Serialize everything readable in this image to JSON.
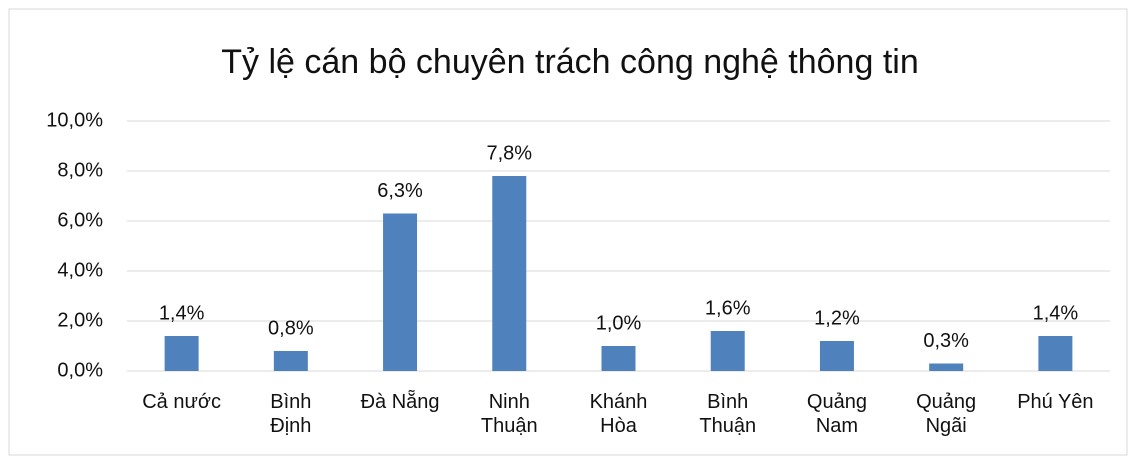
{
  "chart_data": {
    "type": "bar",
    "title": "Tỷ lệ cán bộ chuyên trách công nghệ thông tin",
    "categories": [
      "Cả nước",
      "Bình\nĐịnh",
      "Đà Nẵng",
      "Ninh\nThuận",
      "Khánh\nHòa",
      "Bình\nThuận",
      "Quảng\nNam",
      "Quảng\nNgãi",
      "Phú Yên"
    ],
    "values": [
      1.4,
      0.8,
      6.3,
      7.8,
      1.0,
      1.6,
      1.2,
      0.3,
      1.4
    ],
    "value_labels": [
      "1,4%",
      "0,8%",
      "6,3%",
      "7,8%",
      "1,0%",
      "1,6%",
      "1,2%",
      "0,3%",
      "1,4%"
    ],
    "color": "#4f81bd",
    "ylim": [
      0,
      10
    ],
    "yticks": [
      {
        "value": 0,
        "label": "0,0%"
      },
      {
        "value": 2,
        "label": "2,0%"
      },
      {
        "value": 4,
        "label": "4,0%"
      },
      {
        "value": 6,
        "label": "6,0%"
      },
      {
        "value": 8,
        "label": "8,0%"
      },
      {
        "value": 10,
        "label": "10,0%"
      }
    ],
    "grid": true
  }
}
